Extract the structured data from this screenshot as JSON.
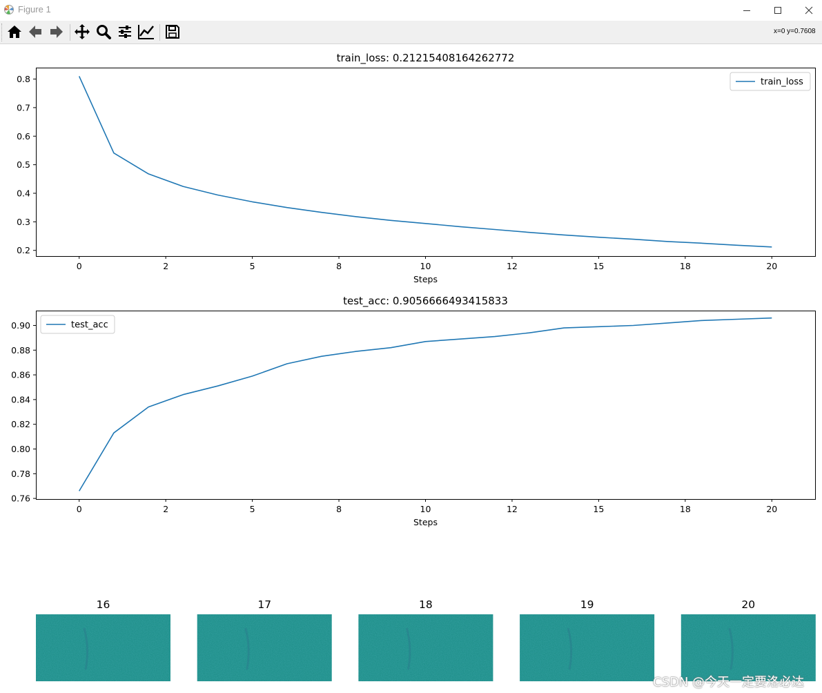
{
  "window": {
    "title": "Figure 1"
  },
  "toolbar": {
    "buttons": [
      {
        "name": "home-icon",
        "label": "Home"
      },
      {
        "name": "back-icon",
        "label": "Back"
      },
      {
        "name": "forward-icon",
        "label": "Forward"
      },
      {
        "name": "pan-icon",
        "label": "Pan"
      },
      {
        "name": "zoom-icon",
        "label": "Zoom"
      },
      {
        "name": "subplots-icon",
        "label": "Subplots"
      },
      {
        "name": "customize-icon",
        "label": "Customize"
      },
      {
        "name": "save-icon",
        "label": "Save"
      }
    ],
    "coords": "x=0  y=0.7608"
  },
  "watermark": "CSDN @今天一定要洛必达",
  "chart_data": [
    {
      "type": "line",
      "title": "train_loss: 0.21215408164262772",
      "xlabel": "Steps",
      "ylabel": "",
      "xlim": [
        -1.25,
        21.25
      ],
      "ylim": [
        0.18,
        0.84
      ],
      "xticks": [
        0,
        2.5,
        5,
        7.5,
        10,
        12.5,
        15,
        17.5,
        20
      ],
      "xticklabels": [
        "0",
        "2",
        "5",
        "8",
        "10",
        "12",
        "15",
        "18",
        "20"
      ],
      "yticks": [
        0.2,
        0.3,
        0.4,
        0.5,
        0.6,
        0.7,
        0.8
      ],
      "yticklabels": [
        "0.2",
        "0.3",
        "0.4",
        "0.5",
        "0.6",
        "0.7",
        "0.8"
      ],
      "legend": "upper right",
      "series": [
        {
          "name": "train_loss",
          "color": "#1f77b4",
          "x": [
            0,
            1,
            2,
            3,
            4,
            5,
            6,
            7,
            8,
            9,
            10,
            11,
            12,
            13,
            14,
            15,
            16,
            17,
            18,
            19,
            20
          ],
          "y": [
            0.81,
            0.541,
            0.468,
            0.424,
            0.394,
            0.37,
            0.35,
            0.333,
            0.318,
            0.305,
            0.294,
            0.283,
            0.273,
            0.263,
            0.254,
            0.246,
            0.239,
            0.231,
            0.225,
            0.218,
            0.212
          ]
        }
      ]
    },
    {
      "type": "line",
      "title": "test_acc: 0.9056666493415833",
      "xlabel": "Steps",
      "ylabel": "",
      "xlim": [
        -1.25,
        21.25
      ],
      "ylim": [
        0.7595,
        0.912
      ],
      "xticks": [
        0,
        2.5,
        5,
        7.5,
        10,
        12.5,
        15,
        17.5,
        20
      ],
      "xticklabels": [
        "0",
        "2",
        "5",
        "8",
        "10",
        "12",
        "15",
        "18",
        "20"
      ],
      "yticks": [
        0.76,
        0.78,
        0.8,
        0.82,
        0.84,
        0.86,
        0.88,
        0.9
      ],
      "yticklabels": [
        "0.76",
        "0.78",
        "0.80",
        "0.82",
        "0.84",
        "0.86",
        "0.88",
        "0.90"
      ],
      "legend": "upper left",
      "series": [
        {
          "name": "test_acc",
          "color": "#1f77b4",
          "x": [
            0,
            1,
            2,
            3,
            4,
            5,
            6,
            7,
            8,
            9,
            10,
            11,
            12,
            13,
            14,
            15,
            16,
            17,
            18,
            19,
            20
          ],
          "y": [
            0.766,
            0.813,
            0.834,
            0.844,
            0.851,
            0.859,
            0.869,
            0.875,
            0.879,
            0.882,
            0.887,
            0.889,
            0.891,
            0.894,
            0.898,
            0.899,
            0.9,
            0.902,
            0.904,
            0.905,
            0.906
          ]
        }
      ]
    },
    {
      "type": "heatmap",
      "title": "",
      "panels": [
        "16",
        "17",
        "18",
        "19",
        "20"
      ],
      "base_color": "#21918c",
      "colormap": "viridis"
    }
  ]
}
